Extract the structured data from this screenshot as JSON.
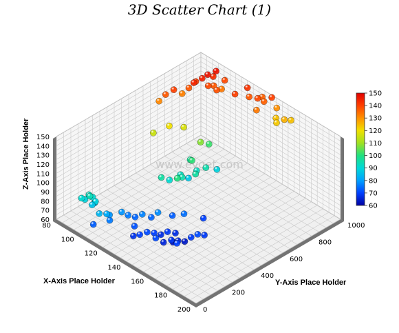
{
  "chart_data": {
    "type": "scatter",
    "title": "3D Scatter Chart (1)",
    "xlabel": "X-Axis Place Holder",
    "ylabel": "Y-Axis Place Holder",
    "zlabel": "Z-Axis Place Holder",
    "xlim": [
      80,
      200
    ],
    "ylim": [
      0,
      1000
    ],
    "zlim": [
      60,
      150
    ],
    "x_ticks": [
      "80",
      "100",
      "120",
      "140",
      "160",
      "180",
      "200"
    ],
    "y_ticks": [
      "0",
      "200",
      "400",
      "600",
      "800",
      "1000"
    ],
    "z_ticks": [
      "60",
      "70",
      "80",
      "90",
      "100",
      "110",
      "120",
      "130",
      "140",
      "150"
    ],
    "colorbar": {
      "range": [
        60,
        150
      ],
      "ticks": [
        "60",
        "70",
        "80",
        "90",
        "100",
        "110",
        "120",
        "130",
        "140",
        "150"
      ],
      "colors": [
        "#0000a0",
        "#0040ff",
        "#00a0ff",
        "#00d8d8",
        "#20e080",
        "#a0e020",
        "#f0e000",
        "#ff9000",
        "#ff4000",
        "#e00000"
      ]
    },
    "grid": true,
    "points": [
      [
        96,
        45,
        91
      ],
      [
        97,
        60,
        89
      ],
      [
        98,
        80,
        93
      ],
      [
        100,
        70,
        94
      ],
      [
        100,
        90,
        91
      ],
      [
        102,
        70,
        86
      ],
      [
        103,
        85,
        89
      ],
      [
        101,
        95,
        85
      ],
      [
        110,
        55,
        84
      ],
      [
        112,
        90,
        82
      ],
      [
        112,
        110,
        79
      ],
      [
        114,
        95,
        76
      ],
      [
        108,
        30,
        73
      ],
      [
        115,
        170,
        79
      ],
      [
        118,
        190,
        76
      ],
      [
        121,
        215,
        74
      ],
      [
        124,
        240,
        77
      ],
      [
        126,
        170,
        72
      ],
      [
        128,
        270,
        74
      ],
      [
        130,
        130,
        68
      ],
      [
        133,
        150,
        70
      ],
      [
        135,
        185,
        71
      ],
      [
        138,
        210,
        70
      ],
      [
        140,
        240,
        67
      ],
      [
        142,
        270,
        69
      ],
      [
        145,
        300,
        67
      ],
      [
        143,
        180,
        71
      ],
      [
        146,
        210,
        66
      ],
      [
        149,
        240,
        68
      ],
      [
        151,
        270,
        66
      ],
      [
        148,
        260,
        63
      ],
      [
        153,
        300,
        64
      ],
      [
        155,
        230,
        70
      ],
      [
        156,
        320,
        69
      ],
      [
        158,
        350,
        71
      ],
      [
        160,
        380,
        69
      ],
      [
        130,
        300,
        78
      ],
      [
        135,
        360,
        73
      ],
      [
        140,
        400,
        75
      ],
      [
        148,
        470,
        70
      ],
      [
        118,
        420,
        96
      ],
      [
        120,
        460,
        91
      ],
      [
        122,
        520,
        93
      ],
      [
        124,
        560,
        87
      ],
      [
        126,
        500,
        95
      ],
      [
        128,
        450,
        100
      ],
      [
        126,
        600,
        93
      ],
      [
        129,
        640,
        95
      ],
      [
        130,
        560,
        96
      ],
      [
        131,
        700,
        89
      ],
      [
        118,
        620,
        97
      ],
      [
        117,
        700,
        108
      ],
      [
        118,
        750,
        102
      ],
      [
        122,
        600,
        101
      ],
      [
        95,
        550,
        115
      ],
      [
        100,
        620,
        120
      ],
      [
        105,
        680,
        117
      ],
      [
        85,
        670,
        131
      ],
      [
        87,
        700,
        137
      ],
      [
        89,
        740,
        140
      ],
      [
        90,
        790,
        132
      ],
      [
        92,
        820,
        137
      ],
      [
        93,
        860,
        141
      ],
      [
        95,
        830,
        144
      ],
      [
        96,
        880,
        145
      ],
      [
        97,
        910,
        147
      ],
      [
        98,
        940,
        143
      ],
      [
        98,
        960,
        147
      ],
      [
        100,
        890,
        139
      ],
      [
        101,
        920,
        137
      ],
      [
        103,
        980,
        139
      ],
      [
        104,
        950,
        133
      ],
      [
        106,
        900,
        138
      ],
      [
        118,
        930,
        140
      ],
      [
        120,
        1000,
        142
      ],
      [
        124,
        980,
        137
      ],
      [
        130,
        990,
        139
      ],
      [
        133,
        1010,
        136
      ],
      [
        129,
        1030,
        136
      ],
      [
        136,
        1040,
        140
      ],
      [
        139,
        1050,
        130
      ],
      [
        134,
        950,
        133
      ],
      [
        142,
        1020,
        124
      ],
      [
        145,
        1000,
        123
      ],
      [
        148,
        1030,
        126
      ],
      [
        150,
        1060,
        124
      ]
    ]
  }
}
